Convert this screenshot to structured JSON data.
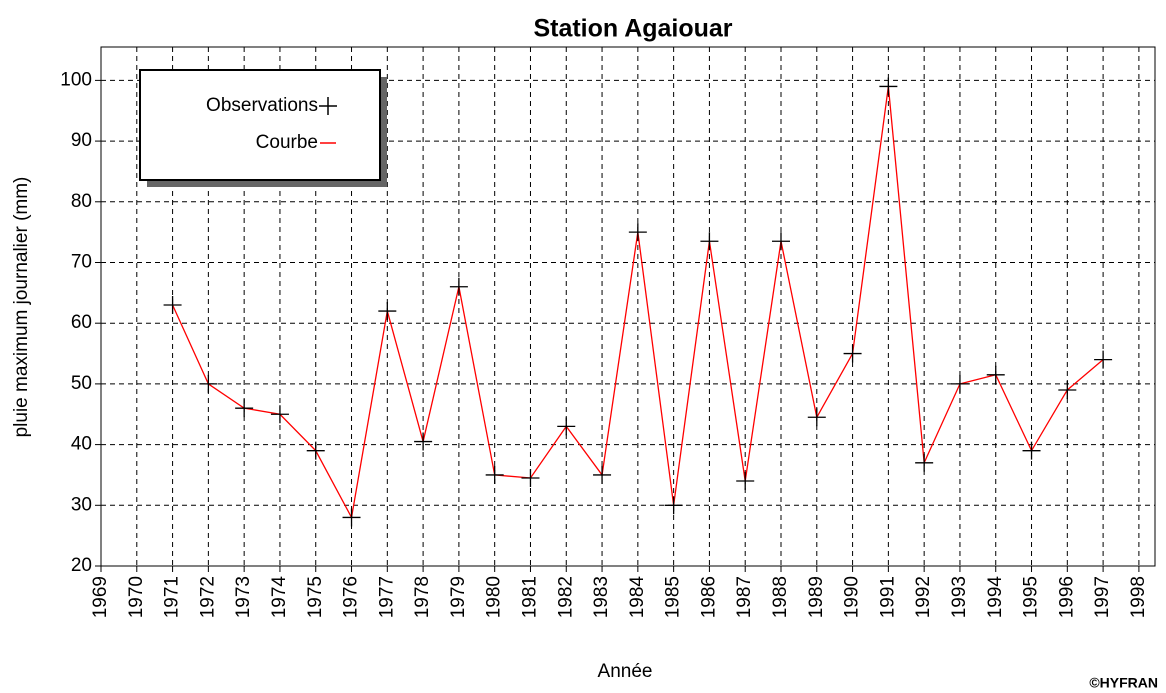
{
  "chart_data": {
    "type": "line",
    "title": "Station Agaiouar",
    "x_label": "Année",
    "y_label": "pluie maximum journalier (mm)",
    "annotation": "©HYFRAN",
    "x": [
      1971,
      1972,
      1973,
      1974,
      1975,
      1976,
      1977,
      1978,
      1979,
      1980,
      1981,
      1982,
      1983,
      1984,
      1985,
      1986,
      1987,
      1988,
      1989,
      1990,
      1991,
      1992,
      1993,
      1994,
      1995,
      1996,
      1997
    ],
    "series": [
      {
        "name": "Observations",
        "color": "#000000",
        "marker": "+",
        "values": [
          63,
          50,
          46,
          45,
          39,
          28,
          62,
          40.5,
          66,
          35,
          34.5,
          43,
          35,
          75,
          30,
          73.5,
          34,
          73.5,
          44.5,
          55,
          99,
          37,
          50,
          51.5,
          39,
          49,
          54
        ]
      },
      {
        "name": "Courbe",
        "color": "#ff0000",
        "marker": "line",
        "values": [
          63,
          50,
          46,
          45,
          39,
          28,
          62,
          40.5,
          66,
          35,
          34.5,
          43,
          35,
          75,
          30,
          73.5,
          34,
          73.5,
          44.5,
          55,
          99,
          37,
          50,
          51.5,
          39,
          49,
          54
        ]
      }
    ],
    "xlim": [
      1969,
      1998.45
    ],
    "ylim": [
      20,
      105.5
    ],
    "xticks": [
      1969,
      1970,
      1971,
      1972,
      1973,
      1974,
      1975,
      1976,
      1977,
      1978,
      1979,
      1980,
      1981,
      1982,
      1983,
      1984,
      1985,
      1986,
      1987,
      1988,
      1989,
      1990,
      1991,
      1992,
      1993,
      1994,
      1995,
      1996,
      1997,
      1998
    ],
    "yticks": [
      20,
      30,
      40,
      50,
      60,
      70,
      80,
      90,
      100
    ],
    "grid": true,
    "legend": "upper left"
  }
}
